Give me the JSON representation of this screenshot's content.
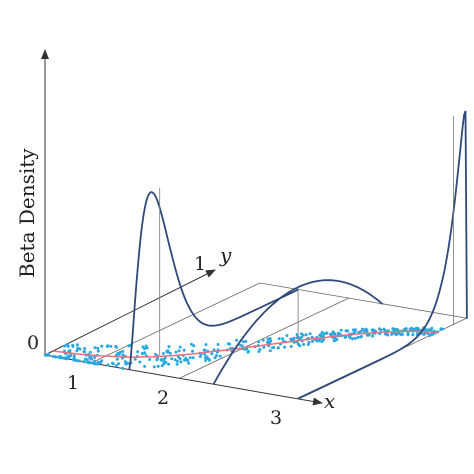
{
  "chart_data": {
    "type": "line",
    "ylabel": "Beta Density",
    "axes": {
      "x_label": "x",
      "y_label": "y",
      "z_label": "Beta Density",
      "x_ticks": [
        "1",
        "2",
        "3"
      ],
      "y_ticks": [
        "1"
      ],
      "z_ticks": [
        "0"
      ],
      "x_range": [
        0,
        3
      ],
      "y_range": [
        0,
        1
      ]
    },
    "mean_curve": {
      "color": "#e8707a",
      "x": [
        0,
        0.25,
        0.5,
        0.75,
        1.0,
        1.25,
        1.5,
        1.75,
        2.0,
        2.25,
        2.5,
        2.75,
        3.0
      ],
      "y": [
        0.05,
        0.06,
        0.08,
        0.11,
        0.16,
        0.24,
        0.34,
        0.45,
        0.56,
        0.66,
        0.74,
        0.8,
        0.83
      ]
    },
    "beta_densities": [
      {
        "x_position": 1,
        "mode_y": 0.18,
        "peak_density": 4.4,
        "shape": "right-skewed"
      },
      {
        "x_position": 2,
        "mode_y": 0.5,
        "peak_density": 1.5,
        "shape": "symmetric"
      },
      {
        "x_position": 3,
        "mode_y": 0.92,
        "peak_density": 5.5,
        "shape": "left-skewed"
      }
    ],
    "scatter_color": "#29a8e0",
    "curve_color": "#2f4a7a",
    "grid": false
  }
}
